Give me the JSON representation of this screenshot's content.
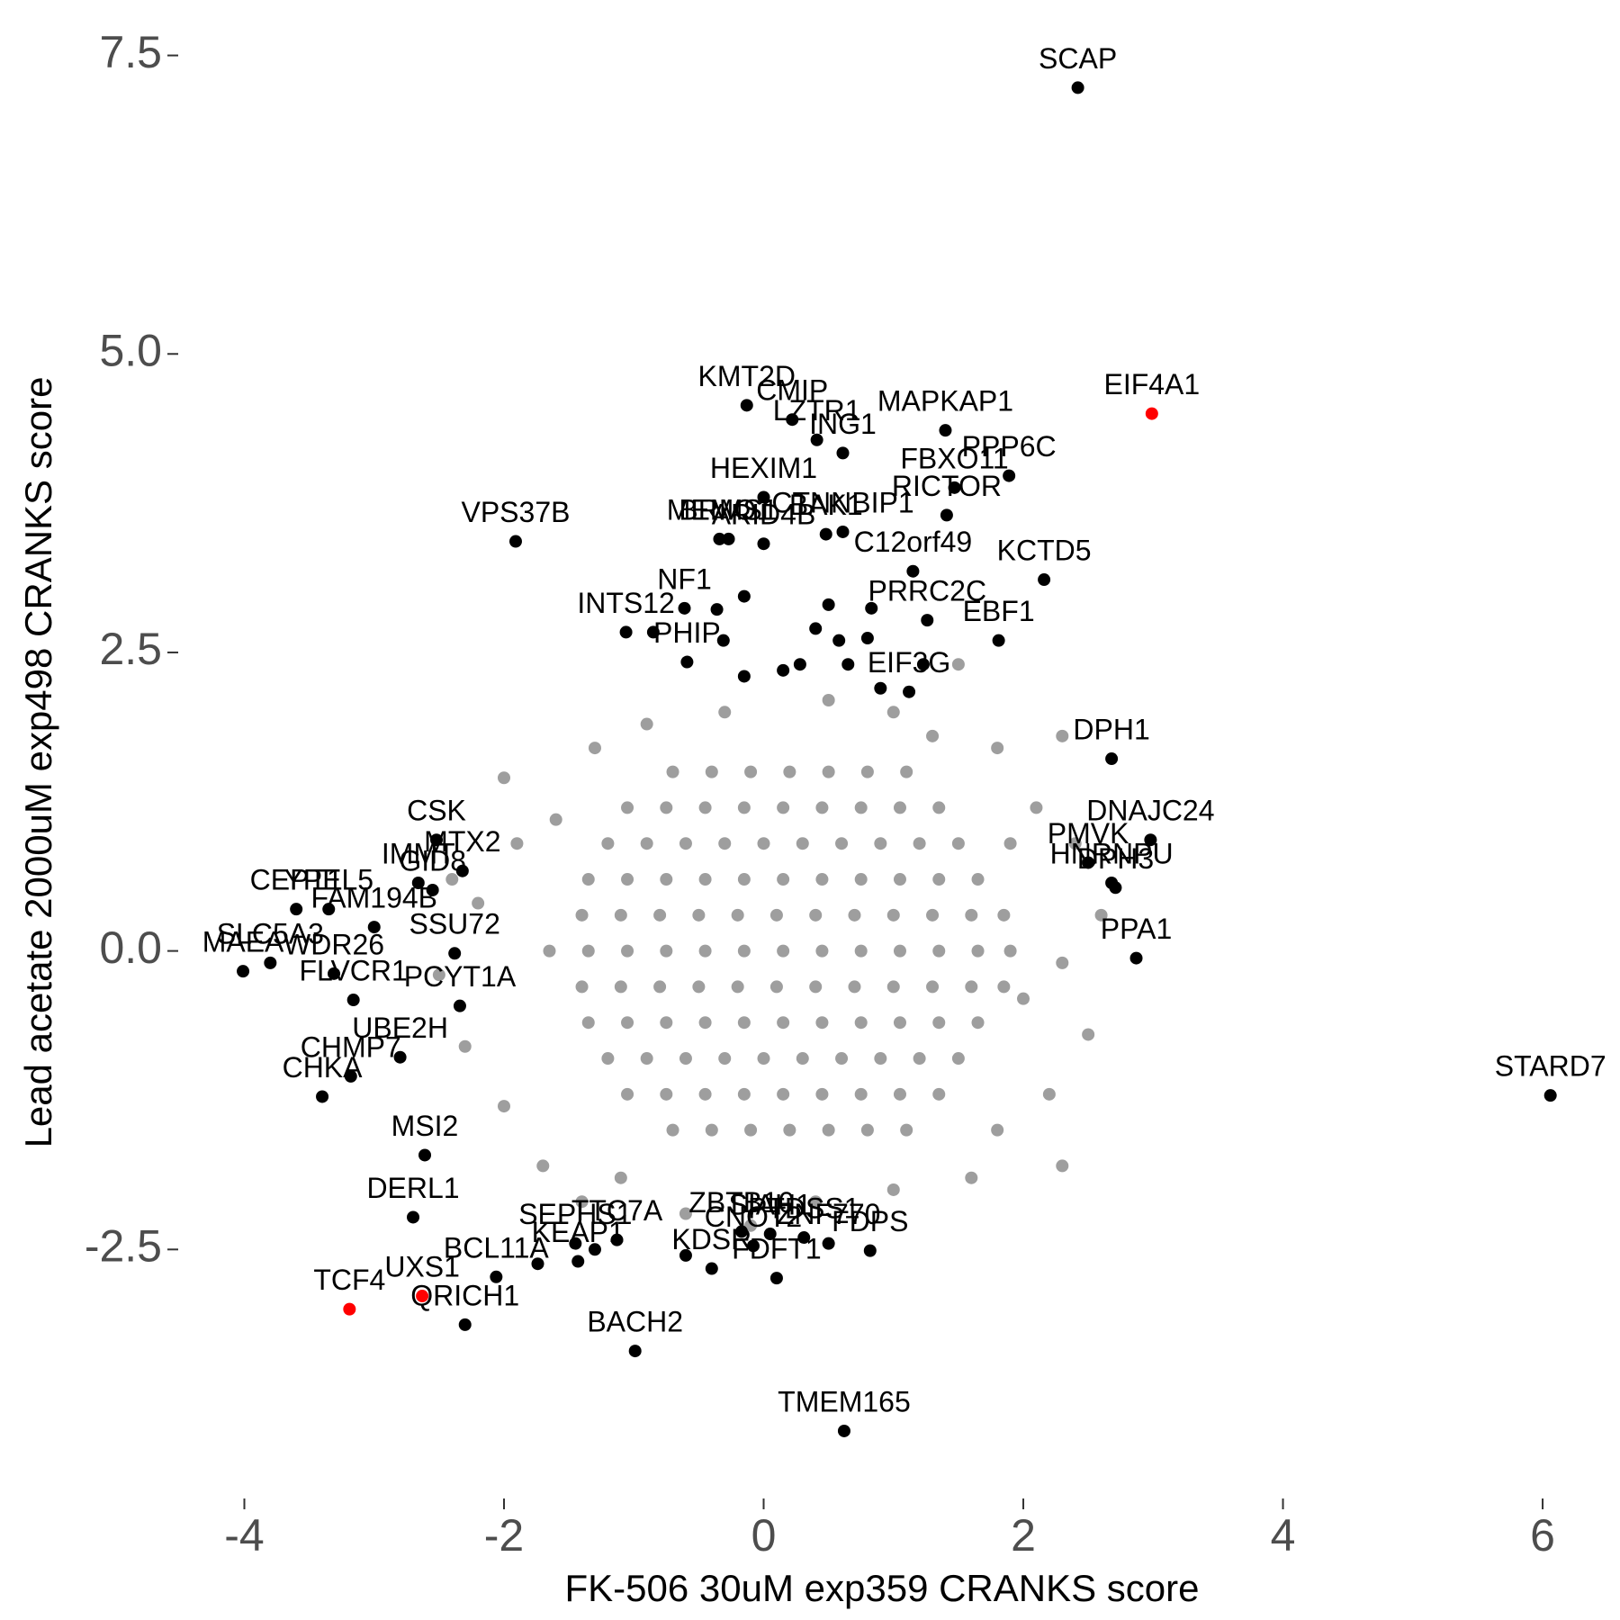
{
  "chart_data": {
    "type": "scatter",
    "xlabel": "FK-506 30uM exp359 CRANKS score",
    "ylabel": "Lead acetate 2000uM exp498 CRANKS score",
    "xlim": [
      -4.35,
      6.18
    ],
    "ylim": [
      -4.45,
      7.61
    ],
    "xticks": [
      -4,
      -2,
      0,
      2,
      4,
      6
    ],
    "yticks": [
      -2.5,
      {
        "value": 0,
        "label": "0.0"
      },
      2.5,
      {
        "value": 5,
        "label": "5.0"
      },
      7.5
    ],
    "grid": false,
    "series": [
      {
        "color": "#9e9e9e",
        "x": [
          -0.7,
          -0.4,
          -0.1,
          0.2,
          0.5,
          0.8,
          1.1,
          -1.05,
          -0.75,
          -0.45,
          -0.15,
          0.15,
          0.45,
          0.75,
          1.05,
          1.35,
          -1.2,
          -0.9,
          -0.6,
          -0.3,
          0,
          0.3,
          0.6,
          0.9,
          1.2,
          1.5,
          -1.35,
          -1.05,
          -0.75,
          -0.45,
          -0.15,
          0.15,
          0.45,
          0.75,
          1.05,
          1.35,
          1.65,
          -1.4,
          -1.1,
          -0.8,
          -0.5,
          -0.2,
          0.1,
          0.4,
          0.7,
          1.0,
          1.3,
          1.6,
          1.85,
          -1.65,
          -1.35,
          -1.05,
          -0.75,
          -0.45,
          -0.15,
          0.15,
          0.45,
          0.75,
          1.05,
          1.35,
          1.65,
          1.9,
          -1.4,
          -1.1,
          -0.8,
          -0.5,
          -0.2,
          0.1,
          0.4,
          0.7,
          1.0,
          1.3,
          1.6,
          1.85,
          -1.35,
          -1.05,
          -0.75,
          -0.45,
          -0.15,
          0.15,
          0.45,
          0.75,
          1.05,
          1.35,
          1.65,
          -1.2,
          -0.9,
          -0.6,
          -0.3,
          0,
          0.3,
          0.6,
          0.9,
          1.2,
          1.5,
          -1.05,
          -0.75,
          -0.45,
          -0.15,
          0.15,
          0.45,
          0.75,
          1.05,
          1.35,
          -0.7,
          -0.4,
          -0.1,
          0.2,
          0.5,
          0.8,
          1.1,
          -2.0,
          -1.3,
          -0.9,
          -0.3,
          0.5,
          1.0,
          1.5,
          1.3,
          1.8,
          2.3,
          2.1,
          2.4,
          2.6,
          2.3,
          2.5,
          2.2,
          2.3,
          1.6,
          1.0,
          0.4,
          -0.1,
          -0.6,
          -1.1,
          -1.7,
          -2.0,
          -2.3,
          -2.5,
          -2.2,
          -1.9,
          -1.6,
          -1.4,
          1.8,
          1.9,
          -2.4,
          2.0
        ],
        "values": [
          1.5,
          1.5,
          1.5,
          1.5,
          1.5,
          1.5,
          1.5,
          1.2,
          1.2,
          1.2,
          1.2,
          1.2,
          1.2,
          1.2,
          1.2,
          1.2,
          0.9,
          0.9,
          0.9,
          0.9,
          0.9,
          0.9,
          0.9,
          0.9,
          0.9,
          0.9,
          0.6,
          0.6,
          0.6,
          0.6,
          0.6,
          0.6,
          0.6,
          0.6,
          0.6,
          0.6,
          0.6,
          0.3,
          0.3,
          0.3,
          0.3,
          0.3,
          0.3,
          0.3,
          0.3,
          0.3,
          0.3,
          0.3,
          0.3,
          0,
          0,
          0,
          0,
          0,
          0,
          0,
          0,
          0,
          0,
          0,
          0,
          0,
          -0.3,
          -0.3,
          -0.3,
          -0.3,
          -0.3,
          -0.3,
          -0.3,
          -0.3,
          -0.3,
          -0.3,
          -0.3,
          -0.3,
          -0.6,
          -0.6,
          -0.6,
          -0.6,
          -0.6,
          -0.6,
          -0.6,
          -0.6,
          -0.6,
          -0.6,
          -0.6,
          -0.9,
          -0.9,
          -0.9,
          -0.9,
          -0.9,
          -0.9,
          -0.9,
          -0.9,
          -0.9,
          -0.9,
          -1.2,
          -1.2,
          -1.2,
          -1.2,
          -1.2,
          -1.2,
          -1.2,
          -1.2,
          -1.2,
          -1.5,
          -1.5,
          -1.5,
          -1.5,
          -1.5,
          -1.5,
          -1.5,
          1.45,
          1.7,
          1.9,
          2.0,
          2.1,
          2.0,
          2.4,
          1.8,
          1.7,
          1.8,
          1.2,
          0.9,
          0.3,
          -0.1,
          -0.7,
          -1.2,
          -1.8,
          -1.9,
          -2.0,
          -2.1,
          -2.3,
          -2.2,
          -1.9,
          -1.8,
          -1.3,
          -0.8,
          -0.2,
          0.4,
          0.9,
          1.1,
          -2.1,
          -1.5,
          0.9,
          0.6,
          -0.4
        ]
      },
      {
        "color": "#000000",
        "x": [
          2.42,
          -0.13,
          0.22,
          0.41,
          1.4,
          0.61,
          0.0,
          1.47,
          1.89,
          1.41,
          0.0,
          -1.91,
          -0.27,
          -0.34,
          0.61,
          0.48,
          1.15,
          2.16,
          -0.61,
          1.26,
          -1.06,
          1.81,
          -0.59,
          1.12,
          2.68,
          2.98,
          2.5,
          2.68,
          2.71,
          2.87,
          6.06,
          -2.52,
          -2.66,
          -2.32,
          -3.6,
          -3.35,
          -2.55,
          -3.0,
          -3.8,
          -4.01,
          -3.31,
          -2.38,
          -3.16,
          -2.34,
          -3.18,
          -2.8,
          -3.4,
          -2.61,
          -2.7,
          -2.06,
          -1.43,
          -1.45,
          -2.3,
          -1.13,
          -0.99,
          -0.4,
          -0.17,
          -0.08,
          0.05,
          0.31,
          0.5,
          0.82,
          0.1,
          0.62,
          -0.85,
          -0.36,
          -0.15,
          0.5,
          0.83,
          0.4,
          -0.31,
          0.58,
          0.8,
          0.65,
          0.9,
          -0.15,
          0.15,
          0.28,
          1.23,
          -1.3,
          -1.74,
          -0.6
        ],
        "values": [
          7.23,
          4.57,
          4.45,
          4.28,
          4.36,
          4.17,
          3.8,
          3.88,
          3.98,
          3.65,
          3.41,
          3.43,
          3.45,
          3.45,
          3.51,
          3.49,
          3.18,
          3.11,
          2.87,
          2.77,
          2.67,
          2.6,
          2.42,
          2.17,
          1.61,
          0.93,
          0.74,
          0.57,
          0.53,
          -0.06,
          -1.21,
          0.93,
          0.57,
          0.67,
          0.35,
          0.35,
          0.51,
          0.2,
          -0.1,
          -0.17,
          -0.19,
          -0.02,
          -0.41,
          -0.46,
          -1.05,
          -0.89,
          -1.22,
          -1.71,
          -2.23,
          -2.73,
          -2.6,
          -2.45,
          -3.13,
          -2.42,
          -3.35,
          -2.66,
          -2.35,
          -2.47,
          -2.37,
          -2.4,
          -2.45,
          -2.51,
          -2.74,
          -4.02,
          2.67,
          2.86,
          2.97,
          2.9,
          2.87,
          2.7,
          2.6,
          2.6,
          2.62,
          2.4,
          2.2,
          2.3,
          2.35,
          2.4,
          2.4,
          -2.5,
          -2.62,
          -2.55
        ],
        "labels": [
          "SCAP",
          "KMT2D",
          "CMIP",
          "LZTR1",
          "MAPKAP1",
          "ING1",
          "HEXIM1",
          "FBXO11",
          "PPP6C",
          "RICTOR",
          "ARID4B",
          "VPS37B",
          "BRMS1",
          "MEMO1",
          "CTNNBIP1",
          "BAK1",
          "C12orf49",
          "KCTD5",
          "NF1",
          "PRRC2C",
          "INTS12",
          "EBF1",
          "PHIP",
          "EIF3G",
          "DPH1",
          "DNAJC24",
          "PMVK",
          "HNRNPU",
          "DPH3",
          "PPA1",
          "STARD7",
          "CSK",
          "IMMT",
          "MTX2",
          "CEPT1",
          "YPEL5",
          "GID8",
          "FAM194B",
          "SLC5A3",
          "MAEA",
          "WDR26",
          "SSU72",
          "FLVCR1",
          "PCYT1A",
          "CHMP7",
          "UBE2H",
          "CHKA",
          "MSI2",
          "DERL1",
          "BCL11A",
          "KEAP1",
          "SEPHS1",
          "QRICH1",
          "TTC7A",
          "BACH2",
          "KDSR",
          "ZBTB10",
          "CNOT2",
          "SIAH1",
          "PTDSS1",
          "ZNF770",
          "FDPS",
          "FDFT1",
          "TMEM165",
          null,
          null,
          null,
          null,
          null,
          null,
          null,
          null,
          null,
          null,
          null,
          null,
          null,
          null,
          null,
          null,
          null,
          null
        ]
      },
      {
        "color": "#ff0000",
        "x": [
          2.99,
          -2.63,
          -3.19
        ],
        "values": [
          4.5,
          -2.89,
          -3.0
        ],
        "labels": [
          "EIF4A1",
          "UXS1",
          "TCF4"
        ]
      }
    ]
  }
}
